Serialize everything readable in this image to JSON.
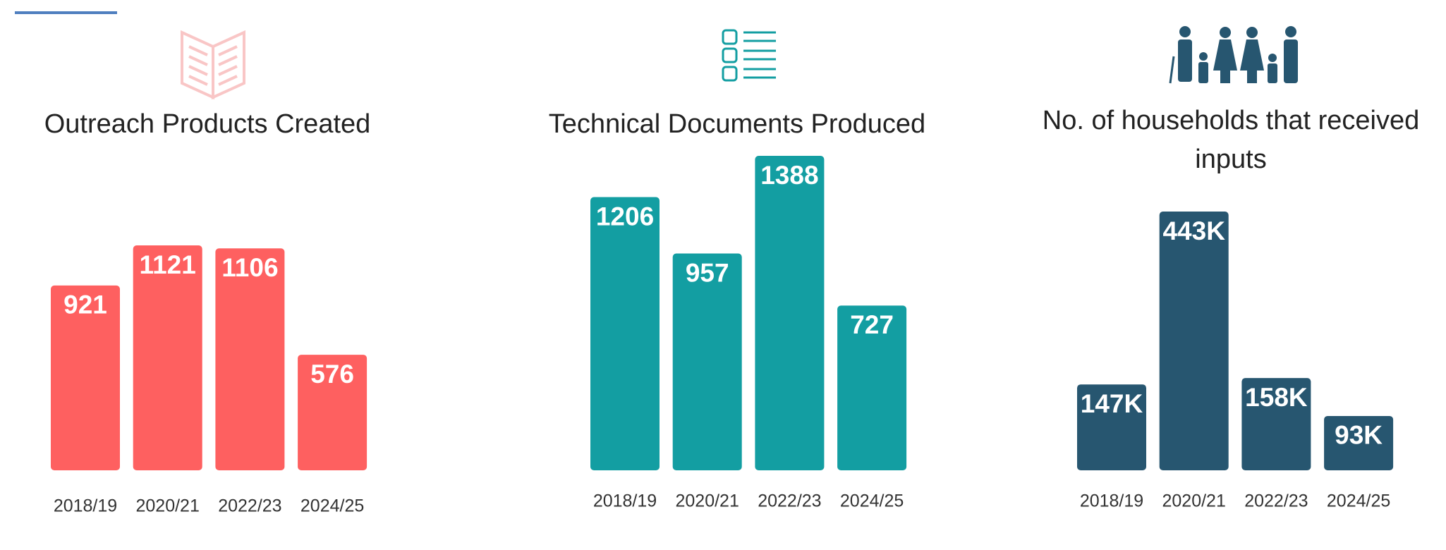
{
  "chart_data": [
    {
      "type": "bar",
      "title": "Outreach Products Created",
      "categories": [
        "2018/19",
        "2020/21",
        "2022/23",
        "2024/25"
      ],
      "values": [
        921,
        1121,
        1106,
        576
      ],
      "color": "#fe6060"
    },
    {
      "type": "bar",
      "title": "Technical Documents Produced",
      "categories": [
        "2018/19",
        "2020/21",
        "2022/23",
        "2024/25"
      ],
      "values": [
        1206,
        957,
        1388,
        727
      ],
      "color": "#139ea2"
    },
    {
      "type": "bar",
      "title": "No. of households that received inputs",
      "categories": [
        "2018/19",
        "2020/21",
        "2022/23",
        "2024/25"
      ],
      "values": [
        147000,
        443000,
        158000,
        93000
      ],
      "value_labels": [
        "147K",
        "443K",
        "158K",
        "93K"
      ],
      "color": "#275670"
    }
  ]
}
